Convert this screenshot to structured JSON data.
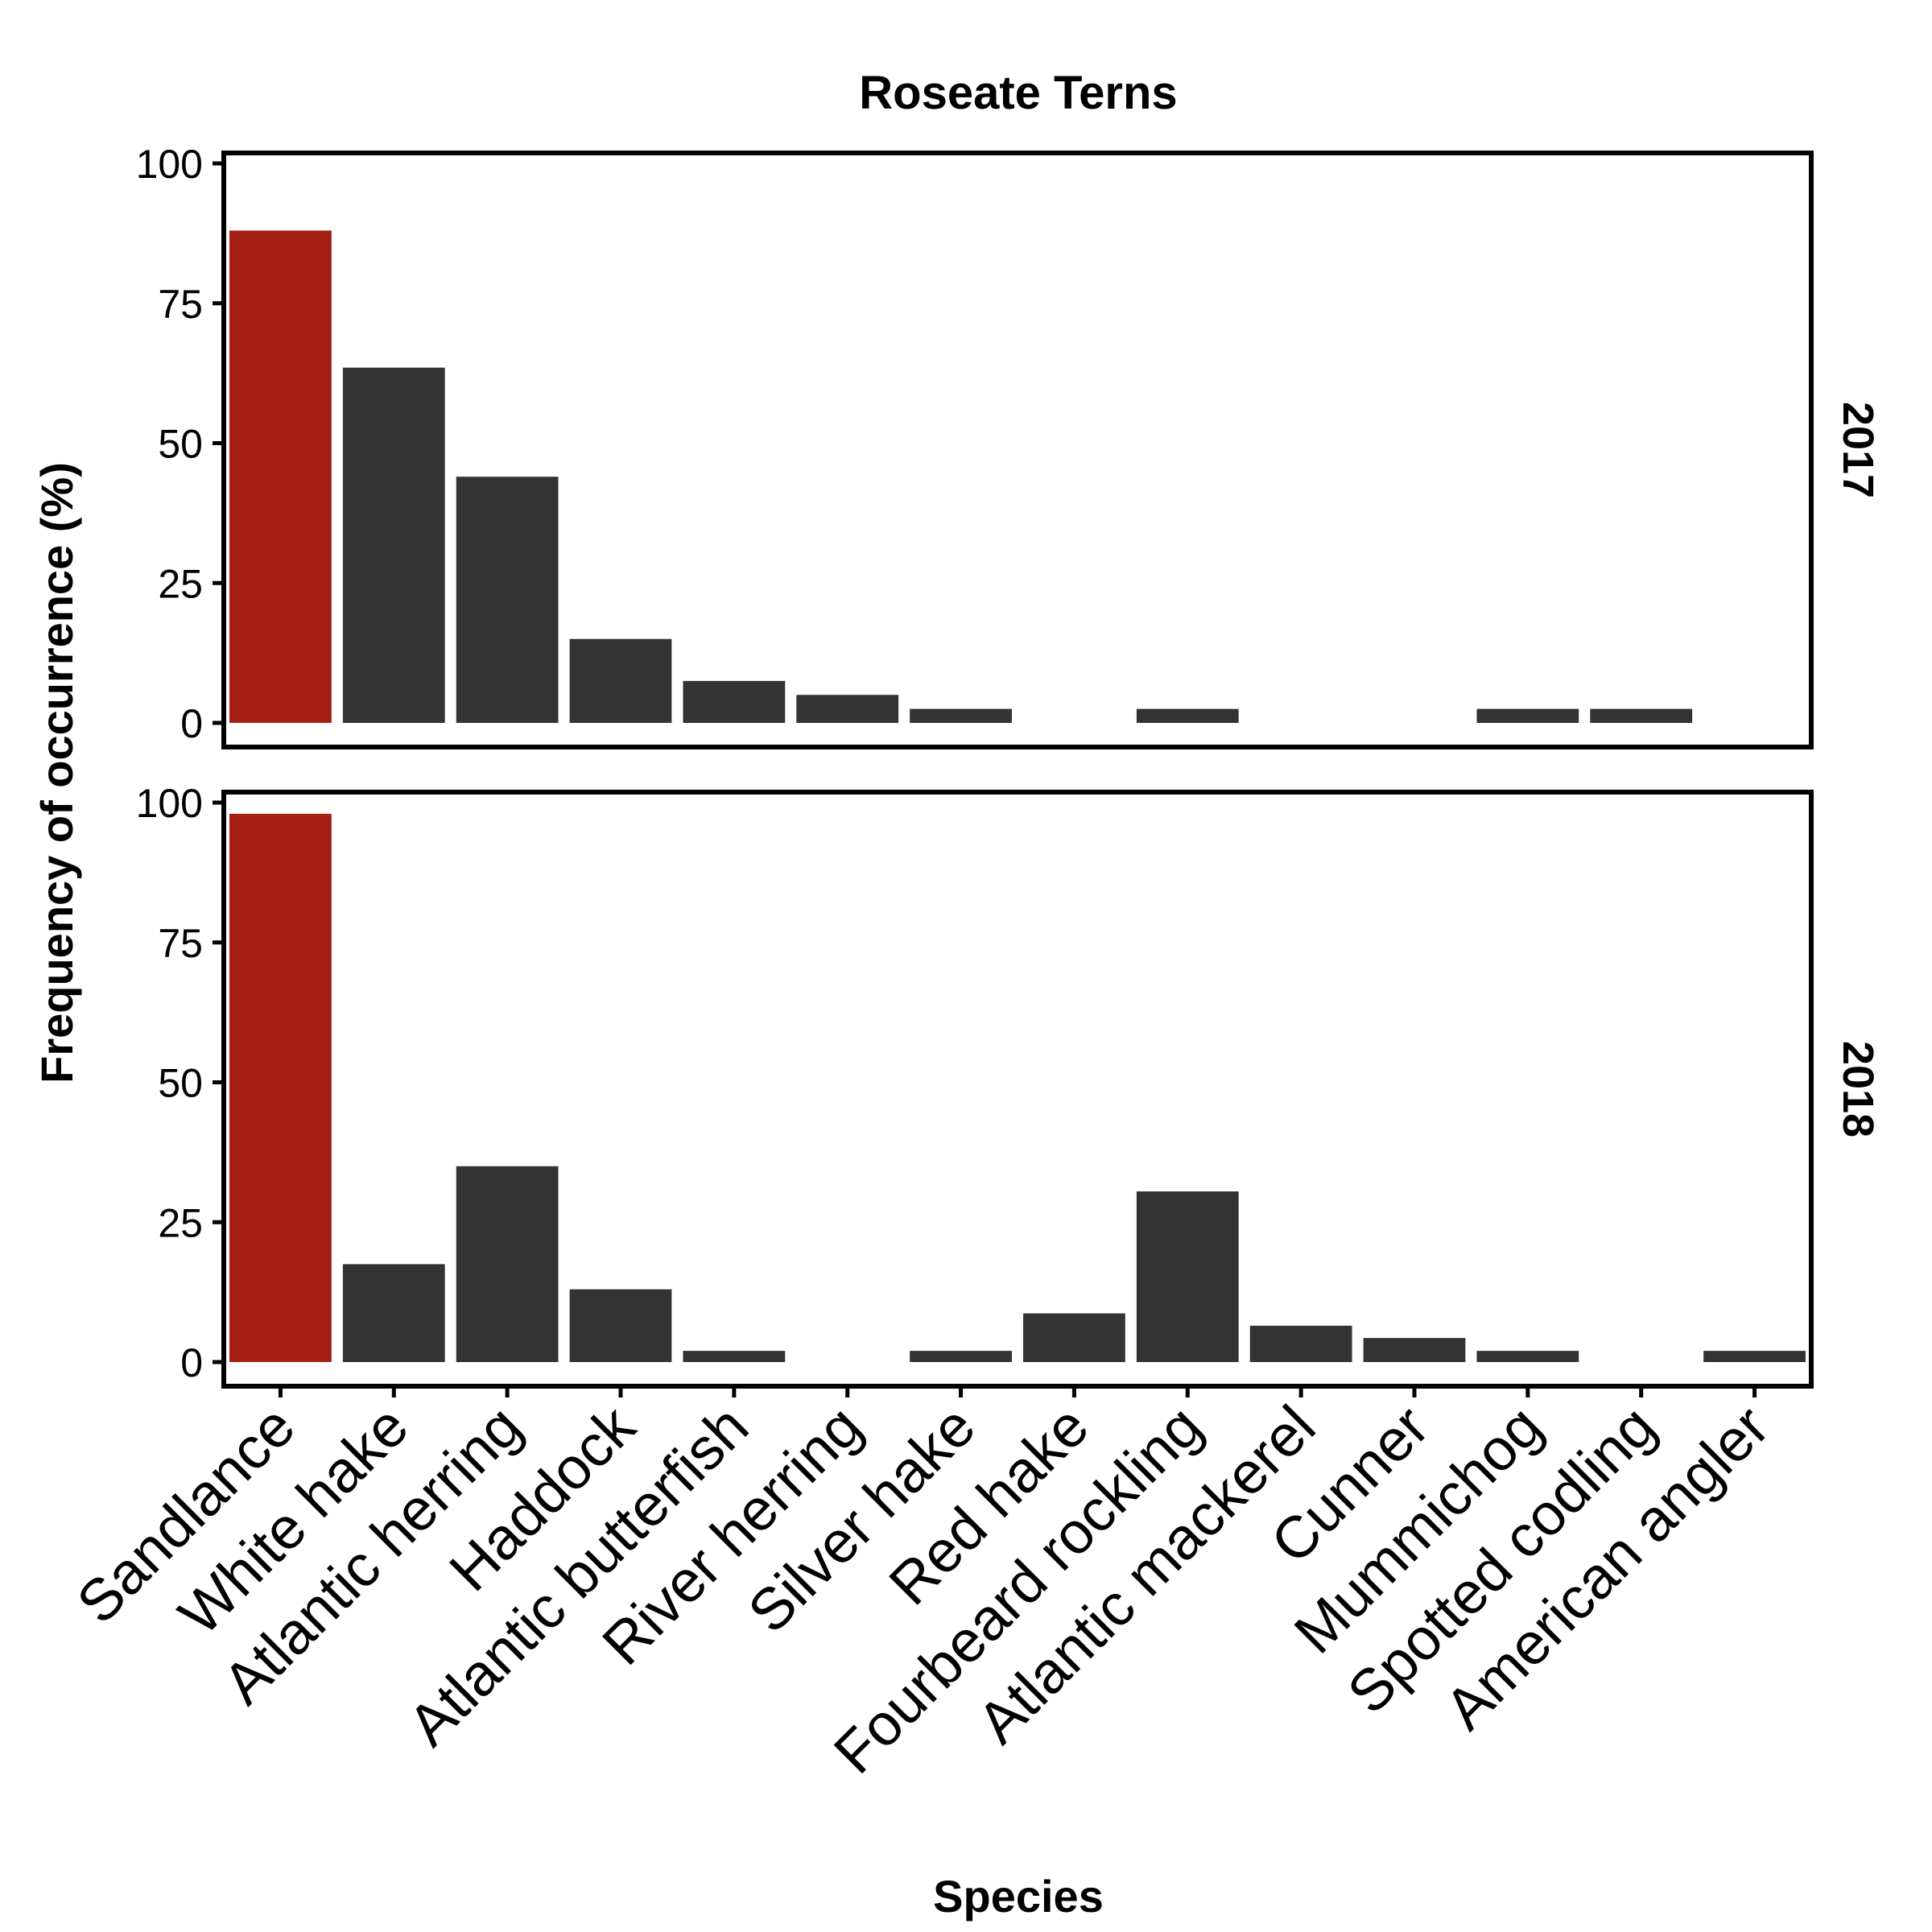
{
  "chart_data": {
    "type": "bar",
    "title": "Roseate Terns",
    "xlabel": "Species",
    "ylabel": "Frequency of occurrence (%)",
    "ylim": [
      -4,
      104
    ],
    "yticks": [
      0,
      25,
      50,
      75,
      100
    ],
    "categories": [
      "Sandlance",
      "White hake",
      "Atlantic herring",
      "Haddock",
      "Atlantic butterfish",
      "River herring",
      "Silver hake",
      "Red hake",
      "Fourbeard rockling",
      "Atlantic mackerel",
      "Cunner",
      "Mummichog",
      "Spotted codling",
      "American angler"
    ],
    "colors": {
      "highlight": "#a31f12",
      "bar": "#333333"
    },
    "highlight_category": "Sandlance",
    "grid": false,
    "panels": [
      {
        "name": "2017",
        "values": [
          88,
          63.5,
          44,
          15,
          7.5,
          5,
          2.5,
          0,
          2.5,
          0,
          0,
          2.5,
          2.5,
          0
        ]
      },
      {
        "name": "2018",
        "values": [
          98,
          17.5,
          35,
          13,
          2,
          0,
          2,
          8.7,
          30.5,
          6.5,
          4.3,
          2,
          0,
          2
        ]
      }
    ]
  }
}
